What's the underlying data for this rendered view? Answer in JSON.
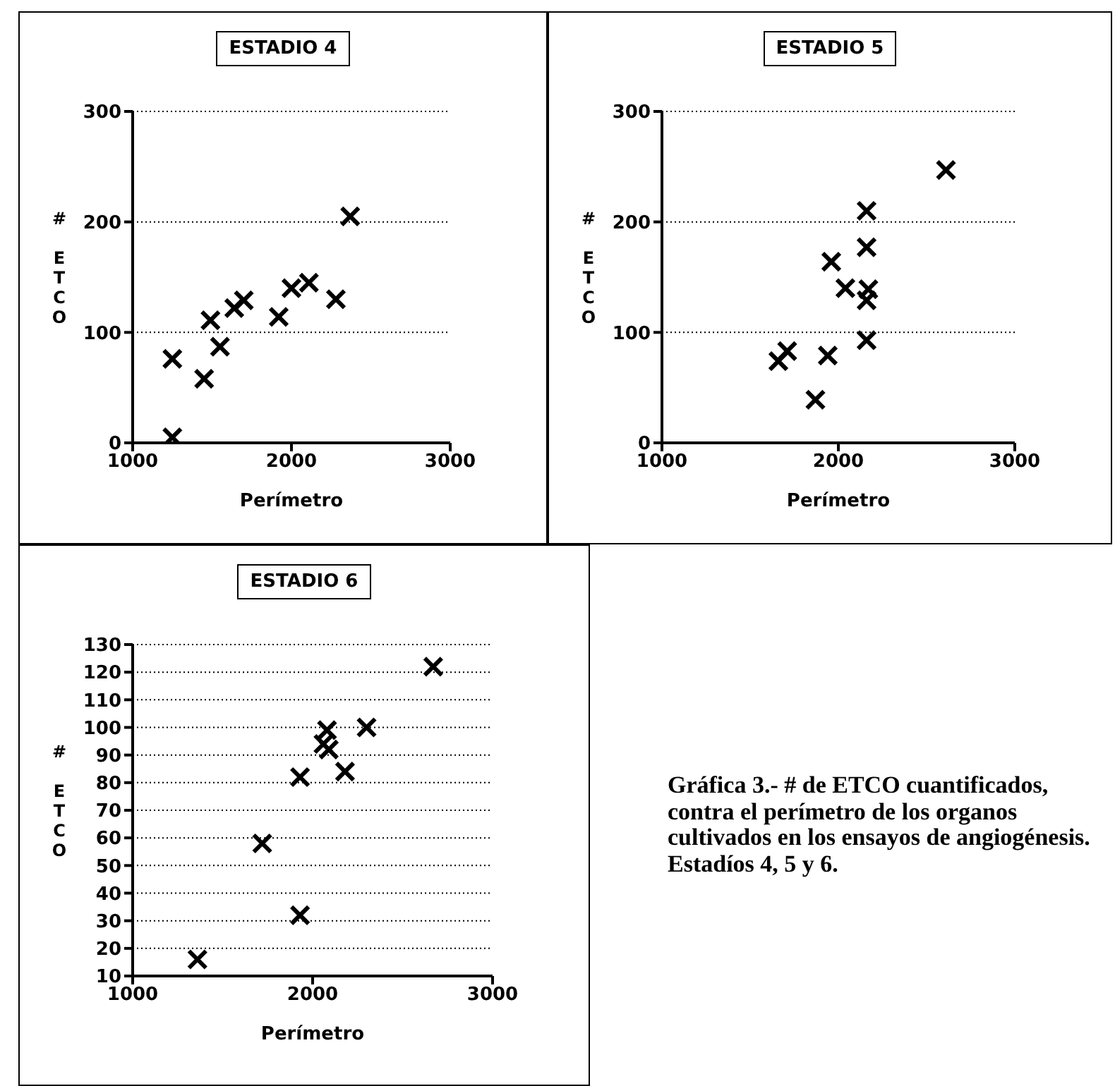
{
  "chart_data": [
    {
      "type": "scatter",
      "title": "ESTADIO 4",
      "xlabel": "Perímetro",
      "ylabel": "# ETCO",
      "marker": "cross",
      "grid": "y",
      "x": [
        1250,
        1250,
        1450,
        1490,
        1550,
        1640,
        1700,
        1920,
        2000,
        2110,
        2280,
        2370
      ],
      "series": [
        {
          "color": "#000000",
          "values": [
            5,
            76,
            58,
            111,
            87,
            122,
            129,
            114,
            140,
            145,
            130,
            205
          ]
        }
      ],
      "xlim": [
        1000,
        3000
      ],
      "xticks": [
        1000,
        2000,
        3000
      ],
      "ylim": [
        0,
        300
      ],
      "yticks": [
        0,
        100,
        200,
        300
      ]
    },
    {
      "type": "scatter",
      "title": "ESTADIO 5",
      "xlabel": "Perímetro",
      "ylabel": "# ETCO",
      "marker": "cross",
      "grid": "y",
      "x": [
        1660,
        1710,
        1870,
        1940,
        1960,
        2040,
        2160,
        2160,
        2170,
        2160,
        2160,
        2610
      ],
      "series": [
        {
          "color": "#000000",
          "values": [
            74,
            83,
            39,
            79,
            164,
            140,
            210,
            177,
            139,
            129,
            93,
            247
          ]
        }
      ],
      "xlim": [
        1000,
        3000
      ],
      "xticks": [
        1000,
        2000,
        3000
      ],
      "ylim": [
        0,
        300
      ],
      "yticks": [
        0,
        100,
        200,
        300
      ]
    },
    {
      "type": "scatter",
      "title": "ESTADIO 6",
      "xlabel": "Perímetro",
      "ylabel": "# ETCO",
      "marker": "cross",
      "grid": "y",
      "x": [
        2670,
        2080,
        2060,
        2090,
        2300,
        1930,
        2180,
        1720,
        1930,
        1360
      ],
      "series": [
        {
          "color": "#000000",
          "values": [
            122,
            99,
            94,
            92,
            100,
            82,
            84,
            58,
            32,
            16
          ]
        }
      ],
      "xlim": [
        1000,
        3000
      ],
      "xticks": [
        1000,
        2000,
        3000
      ],
      "ylim": [
        10,
        130
      ],
      "yticks": [
        10,
        20,
        30,
        40,
        50,
        60,
        70,
        80,
        90,
        100,
        110,
        120,
        130
      ]
    },
    {
      "type": "other",
      "annotations": [
        "Gráfica 3.- # de ETCO cuantificados, contra el perímetro de los organos cultivados en los ensayos de angiogénesis. Estadíos 4, 5 y 6."
      ]
    }
  ]
}
